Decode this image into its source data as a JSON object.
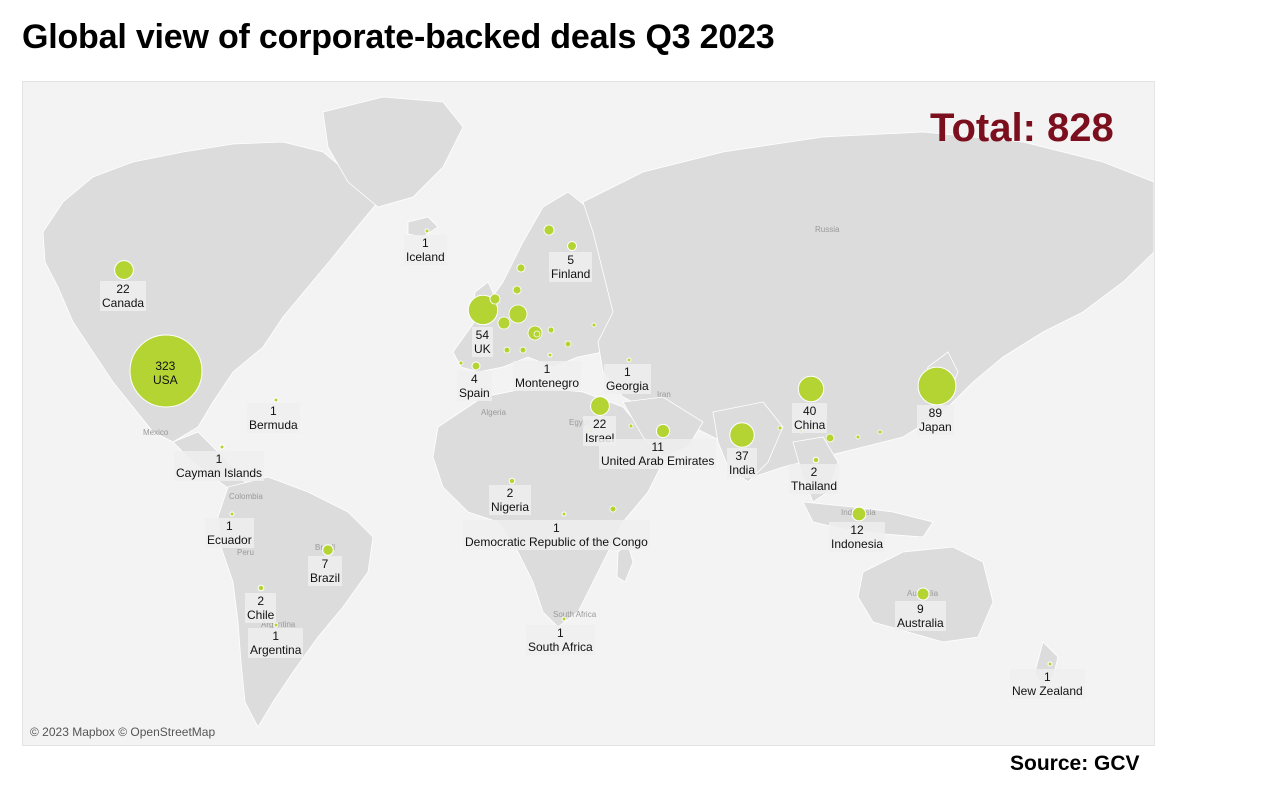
{
  "title": "Global view of corporate-backed deals Q3 2023",
  "total_label": "Total: 828",
  "attribution": "© 2023 Mapbox © OpenStreetMap",
  "source": "Source: GCV",
  "colors": {
    "bubble": "#b4d433",
    "land": "#dedede",
    "water": "#f2f2f2",
    "total": "#7b0f1e"
  },
  "basemap_labels": [
    "Russia",
    "Mexico",
    "Colombia",
    "Algeria",
    "Egypt",
    "Iran",
    "Indonesia",
    "Australia",
    "South Africa",
    "Argentina",
    "Peru",
    "Brazil"
  ],
  "countries": [
    {
      "name": "USA",
      "value": "323"
    },
    {
      "name": "Japan",
      "value": "89"
    },
    {
      "name": "UK",
      "value": "54"
    },
    {
      "name": "China",
      "value": "40"
    },
    {
      "name": "India",
      "value": "37"
    },
    {
      "name": "Canada",
      "value": "22"
    },
    {
      "name": "Israel",
      "value": "22"
    },
    {
      "name": "Indonesia",
      "value": "12"
    },
    {
      "name": "United Arab Emirates",
      "value": "11"
    },
    {
      "name": "Australia",
      "value": "9"
    },
    {
      "name": "Brazil",
      "value": "7"
    },
    {
      "name": "Finland",
      "value": "5"
    },
    {
      "name": "Spain",
      "value": "4"
    },
    {
      "name": "Thailand",
      "value": "2"
    },
    {
      "name": "Nigeria",
      "value": "2"
    },
    {
      "name": "Chile",
      "value": "2"
    },
    {
      "name": "Iceland",
      "value": "1"
    },
    {
      "name": "Bermuda",
      "value": "1"
    },
    {
      "name": "Cayman Islands",
      "value": "1"
    },
    {
      "name": "Ecuador",
      "value": "1"
    },
    {
      "name": "Argentina",
      "value": "1"
    },
    {
      "name": "Montenegro",
      "value": "1"
    },
    {
      "name": "Georgia",
      "value": "1"
    },
    {
      "name": "Democratic Republic of the Congo",
      "value": "1"
    },
    {
      "name": "South Africa",
      "value": "1"
    },
    {
      "name": "New Zealand",
      "value": "1"
    }
  ]
}
